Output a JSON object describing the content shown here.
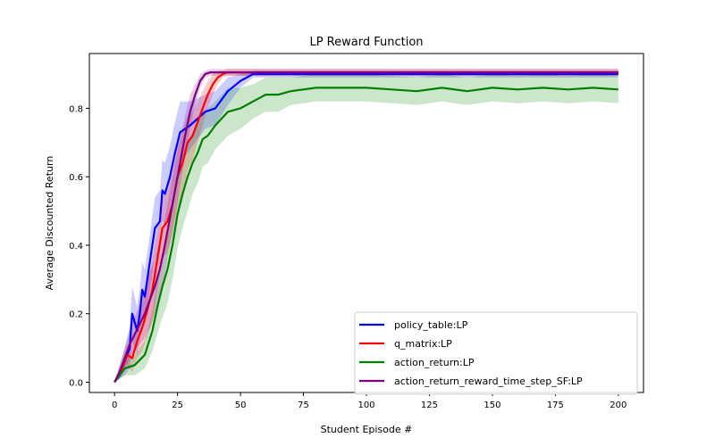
{
  "chart_data": {
    "type": "line",
    "title": "LP Reward Function",
    "xlabel": "Student Episode #",
    "ylabel": "Average Discounted Return",
    "xlim": [
      -10,
      210
    ],
    "ylim": [
      -0.03,
      0.96
    ],
    "xticks": [
      0,
      25,
      50,
      75,
      100,
      125,
      150,
      175,
      200
    ],
    "yticks": [
      0.0,
      0.2,
      0.4,
      0.6,
      0.8
    ],
    "ytick_labels": [
      "0.0",
      "0.2",
      "0.4",
      "0.6",
      "0.8"
    ],
    "legend_position": "lower-right",
    "series": [
      {
        "name": "policy_table:LP",
        "color": "#0000ff",
        "x": [
          0,
          2,
          4,
          6,
          7,
          9,
          10,
          11,
          12,
          14,
          16,
          18,
          19,
          20,
          22,
          24,
          26,
          28,
          30,
          33,
          36,
          40,
          45,
          50,
          55,
          60,
          70,
          80,
          100,
          120,
          150,
          200
        ],
        "y": [
          0.0,
          0.03,
          0.06,
          0.1,
          0.2,
          0.15,
          0.2,
          0.27,
          0.25,
          0.35,
          0.45,
          0.47,
          0.56,
          0.55,
          0.6,
          0.67,
          0.73,
          0.74,
          0.75,
          0.77,
          0.79,
          0.8,
          0.85,
          0.88,
          0.9,
          0.9,
          0.9,
          0.9,
          0.9,
          0.9,
          0.9,
          0.9
        ],
        "band": [
          0.0,
          0.02,
          0.04,
          0.06,
          0.08,
          0.07,
          0.07,
          0.08,
          0.08,
          0.08,
          0.09,
          0.09,
          0.09,
          0.09,
          0.09,
          0.09,
          0.09,
          0.08,
          0.07,
          0.06,
          0.05,
          0.05,
          0.04,
          0.02,
          0.01,
          0.01,
          0.01,
          0.01,
          0.01,
          0.01,
          0.01,
          0.01
        ]
      },
      {
        "name": "q_matrix:LP",
        "color": "#ff0000",
        "x": [
          0,
          3,
          5,
          7,
          9,
          11,
          13,
          15,
          17,
          19,
          21,
          23,
          25,
          27,
          29,
          31,
          33,
          35,
          37,
          39,
          41,
          43,
          45,
          50,
          60,
          80,
          100,
          150,
          200
        ],
        "y": [
          0.0,
          0.04,
          0.08,
          0.07,
          0.12,
          0.16,
          0.21,
          0.27,
          0.36,
          0.45,
          0.47,
          0.52,
          0.6,
          0.64,
          0.7,
          0.72,
          0.76,
          0.8,
          0.84,
          0.87,
          0.89,
          0.9,
          0.905,
          0.905,
          0.905,
          0.905,
          0.905,
          0.905,
          0.905
        ],
        "band": [
          0.0,
          0.02,
          0.03,
          0.04,
          0.05,
          0.07,
          0.08,
          0.09,
          0.09,
          0.09,
          0.09,
          0.09,
          0.09,
          0.09,
          0.08,
          0.07,
          0.06,
          0.05,
          0.04,
          0.03,
          0.02,
          0.01,
          0.01,
          0.01,
          0.01,
          0.01,
          0.01,
          0.01,
          0.01
        ]
      },
      {
        "name": "action_return:LP",
        "color": "#008000",
        "x": [
          0,
          4,
          8,
          12,
          15,
          17,
          19,
          21,
          23,
          25,
          27,
          29,
          31,
          33,
          35,
          37,
          40,
          45,
          50,
          55,
          60,
          65,
          70,
          80,
          90,
          100,
          110,
          120,
          130,
          140,
          150,
          160,
          170,
          180,
          190,
          200
        ],
        "y": [
          0.0,
          0.04,
          0.05,
          0.08,
          0.15,
          0.22,
          0.28,
          0.33,
          0.4,
          0.49,
          0.55,
          0.6,
          0.64,
          0.67,
          0.71,
          0.72,
          0.75,
          0.79,
          0.8,
          0.82,
          0.84,
          0.84,
          0.85,
          0.86,
          0.86,
          0.86,
          0.855,
          0.85,
          0.86,
          0.85,
          0.86,
          0.855,
          0.86,
          0.855,
          0.86,
          0.855
        ],
        "band": [
          0.0,
          0.02,
          0.03,
          0.04,
          0.06,
          0.08,
          0.09,
          0.1,
          0.1,
          0.1,
          0.1,
          0.1,
          0.09,
          0.09,
          0.08,
          0.08,
          0.07,
          0.07,
          0.06,
          0.05,
          0.05,
          0.05,
          0.04,
          0.04,
          0.04,
          0.04,
          0.04,
          0.04,
          0.04,
          0.04,
          0.04,
          0.04,
          0.04,
          0.04,
          0.04,
          0.04
        ]
      },
      {
        "name": "action_return_reward_time_step_SF:LP",
        "color": "#800080",
        "x": [
          0,
          2,
          4,
          6,
          8,
          10,
          12,
          14,
          16,
          18,
          20,
          22,
          24,
          26,
          28,
          30,
          32,
          34,
          36,
          38,
          40,
          45,
          50,
          100,
          150,
          200
        ],
        "y": [
          0.0,
          0.03,
          0.07,
          0.11,
          0.14,
          0.17,
          0.2,
          0.24,
          0.28,
          0.33,
          0.4,
          0.48,
          0.56,
          0.64,
          0.72,
          0.79,
          0.84,
          0.88,
          0.9,
          0.905,
          0.905,
          0.905,
          0.905,
          0.905,
          0.905,
          0.905
        ],
        "band": [
          0.0,
          0.02,
          0.03,
          0.04,
          0.05,
          0.06,
          0.07,
          0.08,
          0.08,
          0.08,
          0.08,
          0.08,
          0.08,
          0.07,
          0.06,
          0.05,
          0.03,
          0.02,
          0.01,
          0.01,
          0.01,
          0.01,
          0.01,
          0.01,
          0.01,
          0.01
        ]
      }
    ]
  }
}
